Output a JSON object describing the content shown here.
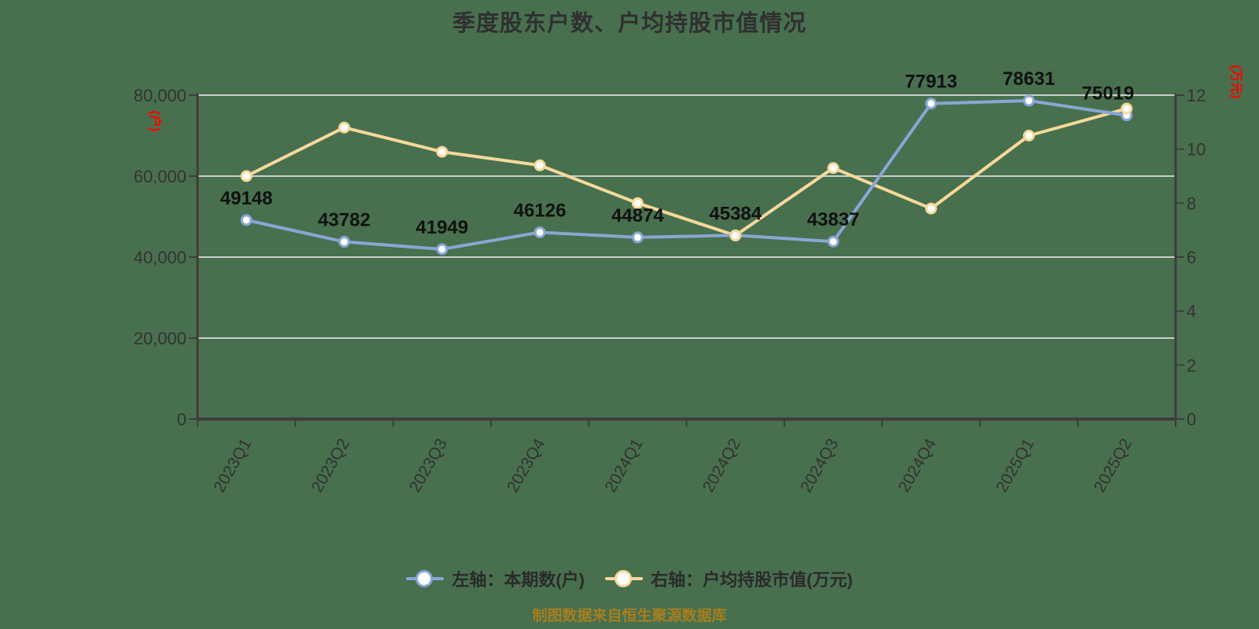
{
  "title": "季度股东户数、户均持股市值情况",
  "footer": "制图数据来自恒生聚源数据库",
  "colors": {
    "background": "#48704E",
    "shareholders_series": "#8AA6D5",
    "market_value_series": "#F6D99B",
    "grid_line": "#C9CFC9",
    "axis_line": "#3D3D3D",
    "tick_label": "#333333",
    "data_label": "#111111",
    "unit_label": "#FF0000",
    "legend_text": "#2B2B2B",
    "footer_text": "#A67E20",
    "marker_fill": "#FFFFFF"
  },
  "left_axis": {
    "unit": "(户)",
    "tick_labels": [
      "0",
      "20,000",
      "40,000",
      "60,000",
      "80,000"
    ],
    "tick_values": [
      0,
      20000,
      40000,
      60000,
      80000
    ]
  },
  "right_axis": {
    "unit": "(万元)",
    "tick_labels": [
      "0",
      "2",
      "4",
      "6",
      "8",
      "10",
      "12"
    ],
    "tick_values": [
      0,
      2,
      4,
      6,
      8,
      10,
      12
    ]
  },
  "legend": {
    "items": [
      {
        "label": "左轴：本期数(户)",
        "color": "#8AA6D5"
      },
      {
        "label": "右轴：户均持股市值(万元)",
        "color": "#F6D99B"
      }
    ]
  },
  "chart_data": {
    "type": "line",
    "title": "季度股东户数、户均持股市值情况",
    "categories": [
      "2023Q1",
      "2023Q2",
      "2023Q3",
      "2023Q4",
      "2024Q1",
      "2024Q2",
      "2024Q3",
      "2024Q4",
      "2025Q1",
      "2025Q2"
    ],
    "series": [
      {
        "name": "左轴：本期数(户)",
        "yaxis": "left",
        "color": "#8AA6D5",
        "values": [
          49148,
          43782,
          41949,
          46126,
          44874,
          45384,
          43837,
          77913,
          78631,
          75019
        ],
        "data_labels": [
          "49148",
          "43782",
          "41949",
          "46126",
          "44874",
          "45384",
          "43837",
          "77913",
          "78631",
          "75019"
        ]
      },
      {
        "name": "右轴：户均持股市值(万元)",
        "yaxis": "right",
        "color": "#F6D99B",
        "values": [
          9.0,
          10.8,
          9.9,
          9.4,
          8.0,
          6.8,
          9.3,
          7.8,
          10.5,
          11.5
        ],
        "data_labels": null
      }
    ],
    "left_ylim": [
      0,
      80000
    ],
    "right_ylim": [
      0,
      12
    ],
    "grid": "horizontal",
    "legend_position": "bottom",
    "x_label_rotation_deg": 60
  }
}
